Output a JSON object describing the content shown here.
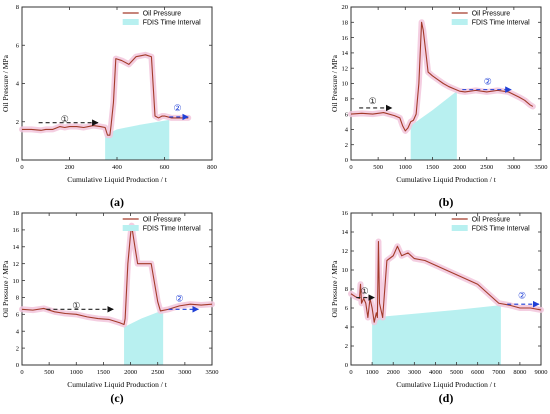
{
  "chart_data": [
    {
      "panel_label": "(a)",
      "type": "line",
      "xlabel": "Cumulative Liquid Production / t",
      "ylabel": "Oil Pressure / MPa",
      "xlim": [
        0,
        800
      ],
      "ylim": [
        0,
        8
      ],
      "xticks": [
        0,
        200,
        400,
        600,
        800
      ],
      "yticks": [
        0,
        2,
        4,
        6,
        8
      ],
      "grid": false,
      "legend_position": "top-right",
      "series": [
        {
          "name": "Oil Pressure",
          "style": "line",
          "color": "#a33b2a",
          "points": [
            [
              0,
              1.6
            ],
            [
              40,
              1.6
            ],
            [
              80,
              1.55
            ],
            [
              100,
              1.6
            ],
            [
              130,
              1.6
            ],
            [
              160,
              1.75
            ],
            [
              180,
              1.7
            ],
            [
              200,
              1.75
            ],
            [
              230,
              1.75
            ],
            [
              260,
              1.7
            ],
            [
              300,
              1.8
            ],
            [
              330,
              1.75
            ],
            [
              350,
              1.7
            ],
            [
              360,
              1.3
            ],
            [
              370,
              1.3
            ],
            [
              375,
              1.8
            ],
            [
              385,
              3.0
            ],
            [
              395,
              5.3
            ],
            [
              420,
              5.2
            ],
            [
              450,
              5.0
            ],
            [
              480,
              5.4
            ],
            [
              520,
              5.5
            ],
            [
              545,
              5.4
            ],
            [
              560,
              2.3
            ],
            [
              575,
              2.2
            ],
            [
              590,
              2.3
            ],
            [
              600,
              2.3
            ],
            [
              630,
              2.2
            ],
            [
              650,
              2.2
            ],
            [
              700,
              2.2
            ]
          ]
        },
        {
          "name": "FDIS Time Interval",
          "style": "area",
          "color": "#b8f0f0",
          "points": [
            [
              350,
              1.3
            ],
            [
              400,
              1.6
            ],
            [
              500,
              1.85
            ],
            [
              620,
              2.1
            ],
            [
              620,
              0
            ],
            [
              350,
              0
            ]
          ]
        }
      ],
      "annotations": [
        {
          "label": "①",
          "x": 180,
          "y": 2.0,
          "color": "#222222",
          "arrow_from": [
            70,
            1.95
          ],
          "arrow_to": [
            320,
            1.95
          ]
        },
        {
          "label": "②",
          "x": 655,
          "y": 2.55,
          "color": "#1f3fd6",
          "arrow_from": [
            620,
            2.25
          ],
          "arrow_to": [
            700,
            2.25
          ]
        }
      ]
    },
    {
      "panel_label": "(b)",
      "type": "line",
      "xlabel": "Cumulative Liquid Production / t",
      "ylabel": "Oil Pressure / MPa",
      "xlim": [
        0,
        3500
      ],
      "ylim": [
        0,
        20
      ],
      "xticks": [
        0,
        500,
        1000,
        1500,
        2000,
        2500,
        3000,
        3500
      ],
      "yticks": [
        0,
        2,
        4,
        6,
        8,
        10,
        12,
        14,
        16,
        18,
        20
      ],
      "grid": false,
      "legend_position": "top-right",
      "series": [
        {
          "name": "Oil Pressure",
          "style": "line",
          "color": "#a33b2a",
          "points": [
            [
              0,
              6.0
            ],
            [
              200,
              6.1
            ],
            [
              400,
              6.0
            ],
            [
              600,
              6.2
            ],
            [
              800,
              5.8
            ],
            [
              900,
              5.5
            ],
            [
              950,
              4.5
            ],
            [
              1000,
              3.8
            ],
            [
              1050,
              4.2
            ],
            [
              1100,
              5.0
            ],
            [
              1150,
              5.2
            ],
            [
              1200,
              6.0
            ],
            [
              1250,
              10.0
            ],
            [
              1300,
              18.0
            ],
            [
              1330,
              17.0
            ],
            [
              1380,
              14.0
            ],
            [
              1420,
              11.5
            ],
            [
              1500,
              11.0
            ],
            [
              1600,
              10.5
            ],
            [
              1700,
              10.0
            ],
            [
              1800,
              9.6
            ],
            [
              1900,
              9.3
            ],
            [
              2000,
              9.0
            ],
            [
              2100,
              8.9
            ],
            [
              2300,
              9.1
            ],
            [
              2500,
              8.9
            ],
            [
              2700,
              9.1
            ],
            [
              2900,
              8.9
            ],
            [
              3100,
              8.2
            ],
            [
              3200,
              7.8
            ],
            [
              3300,
              7.2
            ],
            [
              3350,
              7.0
            ]
          ]
        },
        {
          "name": "FDIS Time Interval",
          "style": "area",
          "color": "#b8f0f0",
          "points": [
            [
              1100,
              4.5
            ],
            [
              1500,
              6.5
            ],
            [
              1950,
              9.0
            ],
            [
              1950,
              0
            ],
            [
              1100,
              0
            ]
          ]
        }
      ],
      "annotations": [
        {
          "label": "①",
          "x": 400,
          "y": 7.3,
          "color": "#222222",
          "arrow_from": [
            150,
            6.8
          ],
          "arrow_to": [
            750,
            6.8
          ]
        },
        {
          "label": "②",
          "x": 2520,
          "y": 9.9,
          "color": "#1f3fd6",
          "arrow_from": [
            2050,
            9.2
          ],
          "arrow_to": [
            2950,
            9.2
          ]
        }
      ]
    },
    {
      "panel_label": "(c)",
      "type": "line",
      "xlabel": "Cumulative Liquid Production / t",
      "ylabel": "Oil Pressure / MPa",
      "xlim": [
        0,
        3500
      ],
      "ylim": [
        0,
        18
      ],
      "xticks": [
        0,
        500,
        1000,
        1500,
        2000,
        2500,
        3000,
        3500
      ],
      "yticks": [
        0,
        2,
        4,
        6,
        8,
        10,
        12,
        14,
        16,
        18
      ],
      "grid": false,
      "legend_position": "top-right",
      "series": [
        {
          "name": "Oil Pressure",
          "style": "line",
          "color": "#a33b2a",
          "points": [
            [
              0,
              6.6
            ],
            [
              200,
              6.5
            ],
            [
              400,
              6.7
            ],
            [
              600,
              6.3
            ],
            [
              800,
              6.1
            ],
            [
              1000,
              6.0
            ],
            [
              1200,
              5.7
            ],
            [
              1400,
              5.5
            ],
            [
              1600,
              5.4
            ],
            [
              1800,
              5.0
            ],
            [
              1880,
              4.8
            ],
            [
              1900,
              5.5
            ],
            [
              1950,
              12.0
            ],
            [
              2000,
              15.5
            ],
            [
              2020,
              16.5
            ],
            [
              2080,
              14.0
            ],
            [
              2130,
              12.0
            ],
            [
              2200,
              12.0
            ],
            [
              2300,
              12.0
            ],
            [
              2380,
              12.0
            ],
            [
              2500,
              7.5
            ],
            [
              2550,
              6.4
            ],
            [
              2700,
              6.6
            ],
            [
              2900,
              7.0
            ],
            [
              3100,
              7.2
            ],
            [
              3300,
              7.1
            ],
            [
              3500,
              7.2
            ]
          ]
        },
        {
          "name": "FDIS Time Interval",
          "style": "area",
          "color": "#b8f0f0",
          "points": [
            [
              1880,
              4.5
            ],
            [
              2200,
              5.5
            ],
            [
              2600,
              6.5
            ],
            [
              2600,
              0
            ],
            [
              1880,
              0
            ]
          ]
        }
      ],
      "annotations": [
        {
          "label": "①",
          "x": 1000,
          "y": 6.7,
          "color": "#222222",
          "arrow_from": [
            450,
            6.6
          ],
          "arrow_to": [
            1680,
            6.6
          ]
        },
        {
          "label": "②",
          "x": 2900,
          "y": 7.5,
          "color": "#1f3fd6",
          "arrow_from": [
            2700,
            6.6
          ],
          "arrow_to": [
            3250,
            6.6
          ]
        }
      ]
    },
    {
      "panel_label": "(d)",
      "type": "line",
      "xlabel": "Cumulative Liquid Production / t",
      "ylabel": "Oil Pressure / MPa",
      "xlim": [
        0,
        9000
      ],
      "ylim": [
        0,
        16
      ],
      "xticks": [
        0,
        1000,
        2000,
        3000,
        4000,
        5000,
        6000,
        7000,
        8000,
        9000
      ],
      "yticks": [
        0,
        2,
        4,
        6,
        8,
        10,
        12,
        14,
        16
      ],
      "grid": false,
      "legend_position": "top-right",
      "series": [
        {
          "name": "Oil Pressure",
          "style": "line",
          "color": "#a33b2a",
          "points": [
            [
              0,
              7.5
            ],
            [
              200,
              7.2
            ],
            [
              400,
              7.0
            ],
            [
              450,
              8.5
            ],
            [
              500,
              6.5
            ],
            [
              600,
              7.0
            ],
            [
              700,
              6.5
            ],
            [
              800,
              5.0
            ],
            [
              900,
              7.0
            ],
            [
              1000,
              6.0
            ],
            [
              1100,
              4.5
            ],
            [
              1200,
              5.5
            ],
            [
              1250,
              5.0
            ],
            [
              1300,
              13.0
            ],
            [
              1350,
              6.5
            ],
            [
              1500,
              5.0
            ],
            [
              1700,
              11.0
            ],
            [
              2000,
              11.5
            ],
            [
              2200,
              12.5
            ],
            [
              2400,
              11.5
            ],
            [
              2700,
              11.8
            ],
            [
              3000,
              11.2
            ],
            [
              3500,
              11.0
            ],
            [
              4000,
              10.5
            ],
            [
              4500,
              10.0
            ],
            [
              5000,
              9.5
            ],
            [
              5500,
              9.0
            ],
            [
              6000,
              8.5
            ],
            [
              6500,
              7.5
            ],
            [
              7000,
              6.5
            ],
            [
              7500,
              6.3
            ],
            [
              8000,
              6.0
            ],
            [
              8500,
              6.0
            ],
            [
              9000,
              5.8
            ]
          ]
        },
        {
          "name": "FDIS Time Interval",
          "style": "area",
          "color": "#b8f0f0",
          "points": [
            [
              1000,
              5.0
            ],
            [
              3000,
              5.4
            ],
            [
              5000,
              5.8
            ],
            [
              7100,
              6.3
            ],
            [
              7100,
              0
            ],
            [
              1000,
              0
            ]
          ]
        }
      ],
      "annotations": [
        {
          "label": "①",
          "x": 650,
          "y": 7.5,
          "color": "#222222",
          "arrow_from": [
            250,
            7.1
          ],
          "arrow_to": [
            1100,
            7.1
          ]
        },
        {
          "label": "②",
          "x": 8100,
          "y": 7.0,
          "color": "#1f3fd6",
          "arrow_from": [
            7400,
            6.4
          ],
          "arrow_to": [
            8900,
            6.4
          ]
        }
      ]
    }
  ]
}
